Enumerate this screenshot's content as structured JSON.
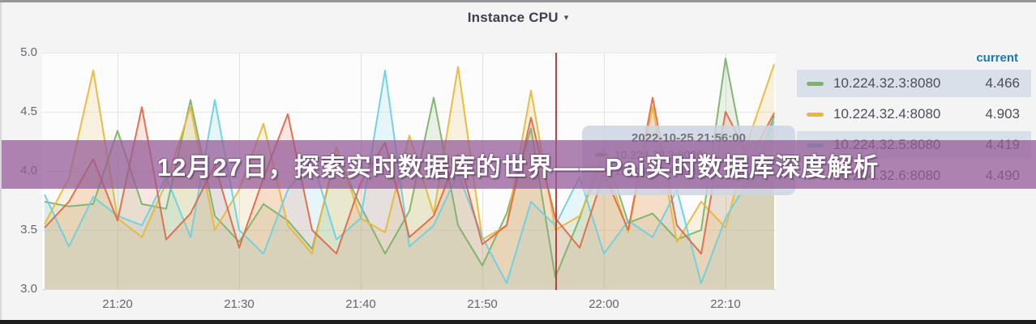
{
  "panel": {
    "title": "Instance CPU",
    "caret": "▾"
  },
  "banner": {
    "text": "12月27日，探索实时数据库的世界——Pai实时数据库深度解析"
  },
  "tooltip": {
    "timestamp": "2022-10-25 21:56:00",
    "rows": [
      {
        "label": "10.224.32.3:8080",
        "color": "#7eb26d"
      },
      {
        "label": "10.224.32.4:8080",
        "color": "#eab839"
      }
    ]
  },
  "legend": {
    "header": "current",
    "header_color": "#1879b8",
    "rows": [
      {
        "label": "10.224.32.3:8080",
        "value": "4.466",
        "color": "#7eb26d",
        "striped": true
      },
      {
        "label": "10.224.32.4:8080",
        "value": "4.903",
        "color": "#eab839",
        "striped": false
      },
      {
        "label": "10.224.32.5:8080",
        "value": "4.419",
        "color": "#6ed0e0",
        "striped": true
      },
      {
        "label": "10.224.32.6:8080",
        "value": "4.490",
        "color": "#e2694a",
        "striped": false
      }
    ]
  },
  "chart_data": {
    "type": "line",
    "title": "Instance CPU",
    "xlabel": "",
    "ylabel": "",
    "ylim": [
      3.0,
      5.0
    ],
    "y_ticks": [
      "5.0",
      "4.5",
      "4.0",
      "3.5",
      "3.0"
    ],
    "x_ticks": [
      "21:20",
      "21:30",
      "21:40",
      "21:50",
      "22:00",
      "22:10"
    ],
    "x_start": "21:14",
    "x_end": "22:14",
    "x_step_minutes": 2,
    "cursor_time": "21:56",
    "grid": true,
    "legend_position": "right",
    "fill_opacity": 0.15,
    "series": [
      {
        "name": "10.224.32.3:8080",
        "color": "#7eb26d",
        "current": 4.466,
        "values": [
          3.74,
          3.7,
          3.72,
          4.34,
          3.72,
          3.68,
          4.6,
          3.62,
          3.4,
          3.72,
          3.58,
          3.34,
          4.14,
          3.7,
          3.3,
          3.66,
          4.62,
          3.54,
          3.2,
          3.64,
          4.36,
          3.1,
          3.6,
          4.2,
          3.56,
          3.64,
          3.42,
          3.5,
          4.95,
          3.88,
          4.466
        ]
      },
      {
        "name": "10.224.32.4:8080",
        "color": "#eab839",
        "current": 4.903,
        "values": [
          3.55,
          3.94,
          4.85,
          3.6,
          3.44,
          3.9,
          4.54,
          3.5,
          3.84,
          4.4,
          3.54,
          3.3,
          4.2,
          3.6,
          3.48,
          4.3,
          3.64,
          4.88,
          3.42,
          3.54,
          4.68,
          3.5,
          3.62,
          4.1,
          3.48,
          4.54,
          3.4,
          3.74,
          3.52,
          4.3,
          4.903
        ]
      },
      {
        "name": "10.224.32.5:8080",
        "color": "#6ed0e0",
        "current": 4.419,
        "values": [
          3.8,
          3.36,
          3.78,
          3.62,
          3.54,
          3.95,
          3.44,
          4.6,
          3.5,
          3.3,
          3.84,
          4.1,
          3.42,
          3.6,
          4.85,
          3.36,
          3.54,
          3.98,
          3.44,
          3.05,
          3.74,
          3.54,
          3.95,
          3.3,
          3.58,
          3.44,
          3.84,
          3.05,
          3.6,
          3.94,
          4.419
        ]
      },
      {
        "name": "10.224.32.6:8080",
        "color": "#e2694a",
        "current": 4.49,
        "values": [
          3.52,
          3.74,
          4.1,
          3.58,
          4.54,
          3.42,
          3.64,
          4.05,
          3.35,
          3.94,
          4.48,
          3.5,
          3.3,
          3.9,
          4.24,
          3.44,
          3.62,
          4.14,
          3.38,
          3.54,
          4.45,
          3.6,
          3.35,
          3.98,
          3.5,
          4.62,
          3.54,
          3.3,
          4.5,
          4.1,
          4.49
        ]
      }
    ]
  }
}
